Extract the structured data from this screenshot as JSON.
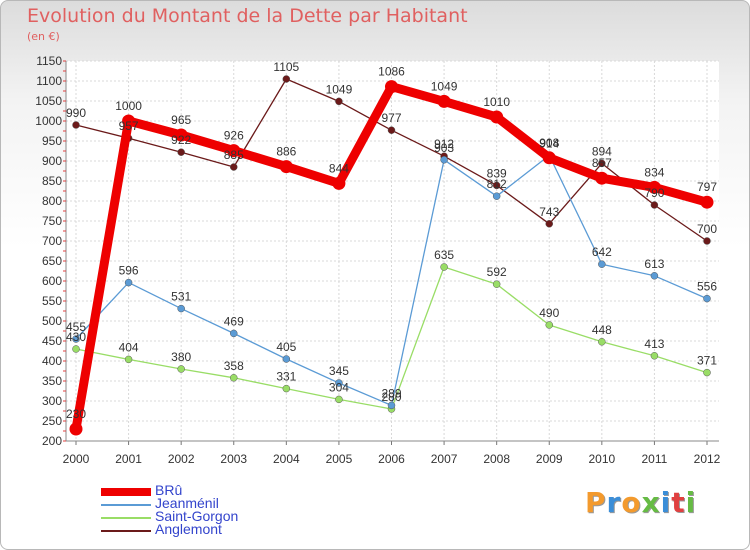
{
  "chart_data": {
    "type": "line",
    "title": "Evolution du Montant de la Dette par Habitant",
    "subtitle": "(en €)",
    "x": [
      "2000",
      "2001",
      "2002",
      "2003",
      "2004",
      "2005",
      "2006",
      "2007",
      "2008",
      "2009",
      "2010",
      "2011",
      "2012"
    ],
    "ylim": [
      200,
      1150
    ],
    "yticks": [
      200,
      250,
      300,
      350,
      400,
      450,
      500,
      550,
      600,
      650,
      700,
      750,
      800,
      850,
      900,
      950,
      1000,
      1050,
      1100,
      1150
    ],
    "grid": true,
    "legend_position": "bottom-left",
    "series": [
      {
        "name": "BRû",
        "color": "#ee0000",
        "values": [
          230,
          1000,
          965,
          926,
          886,
          844,
          1086,
          1049,
          1010,
          908,
          857,
          834,
          797
        ]
      },
      {
        "name": "Jeanménil",
        "color": "#5b9bd5",
        "values": [
          455,
          596,
          531,
          469,
          405,
          345,
          289,
          903,
          812,
          914,
          642,
          613,
          556
        ]
      },
      {
        "name": "Saint-Gorgon",
        "color": "#99dd66",
        "values": [
          430,
          404,
          380,
          358,
          331,
          304,
          280,
          635,
          592,
          490,
          448,
          413,
          371
        ]
      },
      {
        "name": "Anglemont",
        "color": "#6b1a1a",
        "values": [
          990,
          957,
          922,
          885,
          1105,
          1049,
          977,
          912,
          839,
          743,
          894,
          790,
          700
        ]
      }
    ]
  },
  "branding": {
    "logo_text": "Proxiti",
    "logo_colors": [
      "#f39a2d",
      "#3b8ed8",
      "#f39a2d",
      "#66bb44",
      "#3b8ed8",
      "#e04040",
      "#66bb44"
    ]
  }
}
